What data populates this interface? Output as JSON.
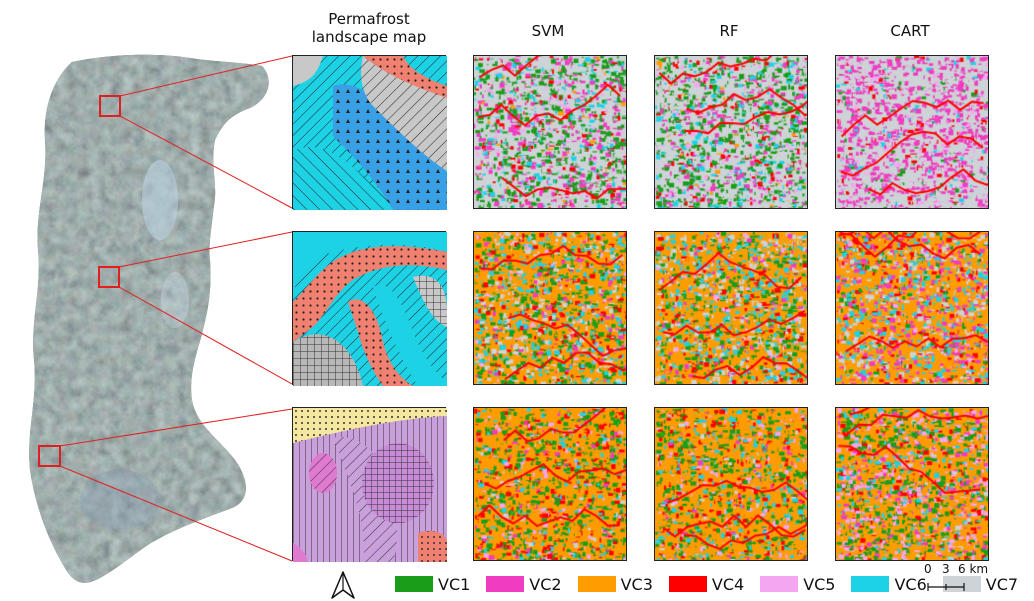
{
  "headers": {
    "landscape": "Permafrost\nlandscape map",
    "svm": "SVM",
    "rf": "RF",
    "cart": "CART"
  },
  "legend": [
    {
      "label": "VC1",
      "color": "#1a9e1a"
    },
    {
      "label": "VC2",
      "color": "#f03cc0"
    },
    {
      "label": "VC3",
      "color": "#ff9c00"
    },
    {
      "label": "VC4",
      "color": "#ff0000"
    },
    {
      "label": "VC5",
      "color": "#f5a6f0"
    },
    {
      "label": "VC6",
      "color": "#1ed2e6"
    },
    {
      "label": "VC7",
      "color": "#cdd3d6"
    }
  ],
  "scale": {
    "ticks": [
      "0",
      "3",
      "6 km"
    ]
  },
  "north_icon": "north-arrow-icon",
  "colors": {
    "inset_box": "#e02020",
    "leader_line": "#e02020"
  }
}
